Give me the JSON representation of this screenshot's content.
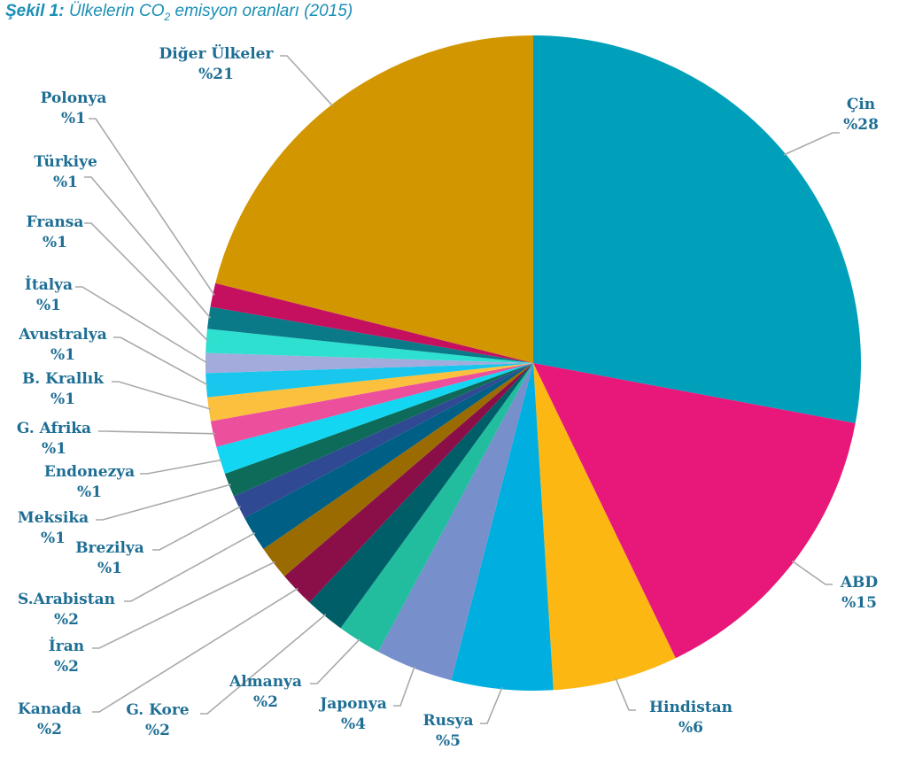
{
  "figure": {
    "number": "Şekil 1:",
    "title_before_sub": "Ülkelerin CO",
    "title_sub": "2",
    "title_after_sub": " emisyon oranları (2015)"
  },
  "chart_data": {
    "type": "pie",
    "title": "Şekil 1: Ülkelerin CO₂ emisyon oranları (2015)",
    "start_angle_deg": 0,
    "direction": "clockwise",
    "legend": "none",
    "slices": [
      {
        "label": "Çin",
        "value_label": "%28",
        "value": 28.5,
        "color": "#00a0bb"
      },
      {
        "label": "ABD",
        "value_label": "%15",
        "value": 15.2,
        "color": "#e8177a"
      },
      {
        "label": "Hindistan",
        "value_label": "%6",
        "value": 6.3,
        "color": "#fcb712"
      },
      {
        "label": "Rusya",
        "value_label": "%5",
        "value": 5.1,
        "color": "#00aee0"
      },
      {
        "label": "Japonya",
        "value_label": "%4",
        "value": 3.9,
        "color": "#778fcb"
      },
      {
        "label": "Almanya",
        "value_label": "%2",
        "value": 2.2,
        "color": "#21bd9e"
      },
      {
        "label": "G. Kore",
        "value_label": "%2",
        "value": 2.0,
        "color": "#005e68"
      },
      {
        "label": "Kanada",
        "value_label": "%2",
        "value": 1.8,
        "color": "#8a0f49"
      },
      {
        "label": "İran",
        "value_label": "%2",
        "value": 1.7,
        "color": "#9a6b00"
      },
      {
        "label": "S.Arabistan",
        "value_label": "%2",
        "value": 1.8,
        "color": "#005f85"
      },
      {
        "label": "Brezilya",
        "value_label": "%1",
        "value": 1.2,
        "color": "#2f4993"
      },
      {
        "label": "Meksika",
        "value_label": "%1",
        "value": 1.2,
        "color": "#0e6b5a"
      },
      {
        "label": "Endonezya",
        "value_label": "%1",
        "value": 1.4,
        "color": "#12d6f2"
      },
      {
        "label": "G. Afrika",
        "value_label": "%1",
        "value": 1.3,
        "color": "#ec4f9c"
      },
      {
        "label": "B. Krallık",
        "value_label": "%1",
        "value": 1.2,
        "color": "#fbc13e"
      },
      {
        "label": "Avustralya",
        "value_label": "%1",
        "value": 1.2,
        "color": "#18c6ee"
      },
      {
        "label": "İtalya",
        "value_label": "%1",
        "value": 1.0,
        "color": "#a2abdc"
      },
      {
        "label": "Fransa",
        "value_label": "%1",
        "value": 1.2,
        "color": "#2ee0cf"
      },
      {
        "label": "Türkiye",
        "value_label": "%1",
        "value": 1.1,
        "color": "#0a7a88"
      },
      {
        "label": "Polonya",
        "value_label": "%1",
        "value": 1.2,
        "color": "#c4105f"
      },
      {
        "label": "Diğer Ülkeler",
        "value_label": "%21",
        "value": 21.5,
        "color": "#d29600"
      }
    ]
  }
}
